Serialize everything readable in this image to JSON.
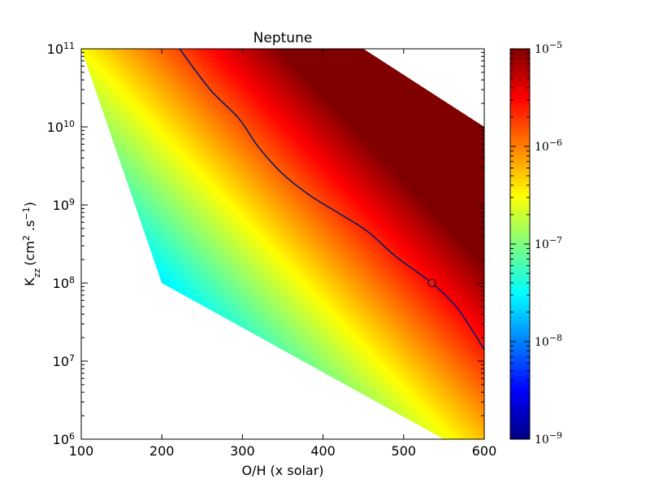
{
  "chart_data": {
    "type": "heatmap",
    "title": "Neptune",
    "xlabel": "O/H (x solar)",
    "ylabel": "K",
    "ylabel_subscript": "zz",
    "ylabel_units": "(cm",
    "ylabel_units_exp": "2",
    "ylabel_units_mid": " .s",
    "ylabel_units_exp2": "−1",
    "ylabel_units_end": ")",
    "xlim": [
      100,
      600
    ],
    "ylim": [
      1000000,
      100000000000
    ],
    "yscale": "log",
    "xticks": [
      100,
      200,
      300,
      400,
      500,
      600
    ],
    "yticks": [
      {
        "value": 1000000,
        "base": "10",
        "exp": "6"
      },
      {
        "value": 10000000,
        "base": "10",
        "exp": "7"
      },
      {
        "value": 100000000,
        "base": "10",
        "exp": "8"
      },
      {
        "value": 1000000000,
        "base": "10",
        "exp": "9"
      },
      {
        "value": 10000000000,
        "base": "10",
        "exp": "10"
      },
      {
        "value": 100000000000,
        "base": "10",
        "exp": "11"
      }
    ],
    "colorbar": {
      "scale": "log",
      "range": [
        1e-09,
        1e-05
      ],
      "colormap": "jet",
      "ticks": [
        {
          "value": 1e-09,
          "base": "10",
          "exp": "−9"
        },
        {
          "value": 1e-08,
          "base": "10",
          "exp": "−8"
        },
        {
          "value": 1e-07,
          "base": "10",
          "exp": "−7"
        },
        {
          "value": 1e-06,
          "base": "10",
          "exp": "−6"
        },
        {
          "value": 1e-05,
          "base": "10",
          "exp": "−5"
        }
      ]
    },
    "region_boundary": [
      {
        "x": 100,
        "y": 100000000000
      },
      {
        "x": 450,
        "y": 100000000000
      },
      {
        "x": 600,
        "y": 10000000000
      },
      {
        "x": 600,
        "y": 1000000
      },
      {
        "x": 550,
        "y": 1000000
      },
      {
        "x": 200,
        "y": 100000000
      },
      {
        "x": 100,
        "y": 100000000000
      }
    ],
    "contour_line": {
      "color": "#0a1a6b",
      "points": [
        {
          "x": 222,
          "y": 100000000000
        },
        {
          "x": 260,
          "y": 30000000000
        },
        {
          "x": 295,
          "y": 13000000000
        },
        {
          "x": 320,
          "y": 5500000000
        },
        {
          "x": 350,
          "y": 2500000000
        },
        {
          "x": 385,
          "y": 1300000000
        },
        {
          "x": 420,
          "y": 780000000
        },
        {
          "x": 455,
          "y": 460000000
        },
        {
          "x": 490,
          "y": 220000000
        },
        {
          "x": 535,
          "y": 100000000
        },
        {
          "x": 565,
          "y": 50000000
        },
        {
          "x": 585,
          "y": 25000000
        },
        {
          "x": 600,
          "y": 14000000
        }
      ]
    },
    "marker": {
      "x": 535,
      "y": 100000000,
      "color": "#e31a1c"
    }
  }
}
